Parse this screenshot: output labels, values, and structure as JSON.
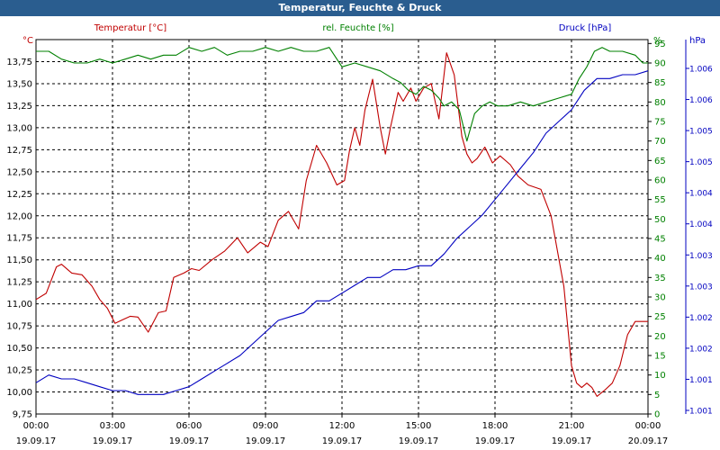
{
  "window": {
    "title": "Temperatur, Feuchte & Druck"
  },
  "chart_data": {
    "type": "line",
    "title": "Temperatur, Feuchte & Druck",
    "grid": true,
    "x_ticks": [
      {
        "time": "00:00",
        "date": "19.09.17"
      },
      {
        "time": "03:00",
        "date": "19.09.17"
      },
      {
        "time": "06:00",
        "date": "19.09.17"
      },
      {
        "time": "09:00",
        "date": "19.09.17"
      },
      {
        "time": "12:00",
        "date": "19.09.17"
      },
      {
        "time": "15:00",
        "date": "19.09.17"
      },
      {
        "time": "18:00",
        "date": "19.09.17"
      },
      {
        "time": "21:00",
        "date": "19.09.17"
      },
      {
        "time": "00:00",
        "date": "20.09.17"
      }
    ],
    "x_range_hours": [
      0,
      24
    ],
    "axes": {
      "temperature": {
        "label": "Temperatur [°C]",
        "unit": "°C",
        "color": "#c00000",
        "ylim": [
          9.75,
          14.0
        ],
        "ticks": [
          "9,75",
          "10,00",
          "10,25",
          "10,50",
          "10,75",
          "11,00",
          "11,25",
          "11,50",
          "11,75",
          "12,00",
          "12,25",
          "12,50",
          "12,75",
          "13,00",
          "13,25",
          "13,50",
          "13,75"
        ]
      },
      "humidity": {
        "label": "rel. Feuchte [%]",
        "unit": "%",
        "color": "#008000",
        "ylim": [
          0,
          96
        ],
        "ticks": [
          "0",
          "5",
          "10",
          "15",
          "20",
          "25",
          "30",
          "35",
          "40",
          "45",
          "50",
          "55",
          "60",
          "65",
          "70",
          "75",
          "80",
          "85",
          "90",
          "95"
        ]
      },
      "pressure": {
        "label": "Druck [hPa]",
        "unit": "hPa",
        "color": "#0000c0",
        "ticks": [
          "1.001",
          "1.001",
          "1.002",
          "1.002",
          "1.003",
          "1.003",
          "1.004",
          "1.004",
          "1.005",
          "1.005",
          "1.006",
          "1.006"
        ]
      }
    },
    "series": [
      {
        "name": "Temperatur [°C]",
        "axis": "temperature",
        "color": "#c00000",
        "x": [
          0,
          0.4,
          0.8,
          1.0,
          1.4,
          1.8,
          2.2,
          2.5,
          2.8,
          3.1,
          3.4,
          3.7,
          4.0,
          4.4,
          4.8,
          5.1,
          5.4,
          5.8,
          6.1,
          6.4,
          6.9,
          7.4,
          7.9,
          8.3,
          8.8,
          9.1,
          9.5,
          9.9,
          10.3,
          10.6,
          11.0,
          11.4,
          11.8,
          12.1,
          12.3,
          12.5,
          12.7,
          12.9,
          13.2,
          13.5,
          13.7,
          13.9,
          14.2,
          14.4,
          14.7,
          14.9,
          15.2,
          15.5,
          15.8,
          16.1,
          16.4,
          16.7,
          16.9,
          17.1,
          17.3,
          17.6,
          17.9,
          18.2,
          18.6,
          18.9,
          19.3,
          19.8,
          20.2,
          20.7,
          21.0,
          21.2,
          21.4,
          21.6,
          21.8,
          22.0,
          22.3,
          22.6,
          22.9,
          23.2,
          23.5,
          23.8,
          24.0
        ],
        "values": [
          11.05,
          11.12,
          11.42,
          11.45,
          11.35,
          11.33,
          11.2,
          11.05,
          10.95,
          10.78,
          10.82,
          10.86,
          10.85,
          10.68,
          10.9,
          10.92,
          11.3,
          11.35,
          11.4,
          11.38,
          11.5,
          11.6,
          11.75,
          11.58,
          11.7,
          11.65,
          11.95,
          12.05,
          11.85,
          12.4,
          12.8,
          12.6,
          12.35,
          12.4,
          12.75,
          13.0,
          12.8,
          13.2,
          13.55,
          13.0,
          12.7,
          13.0,
          13.4,
          13.3,
          13.45,
          13.3,
          13.45,
          13.5,
          13.1,
          13.85,
          13.6,
          12.9,
          12.7,
          12.6,
          12.65,
          12.78,
          12.6,
          12.68,
          12.58,
          12.45,
          12.35,
          12.3,
          12.0,
          11.2,
          10.3,
          10.1,
          10.05,
          10.1,
          10.05,
          9.95,
          10.02,
          10.1,
          10.3,
          10.65,
          10.8,
          10.8,
          10.8
        ]
      },
      {
        "name": "rel. Feuchte [%]",
        "axis": "humidity",
        "color": "#008000",
        "x": [
          0,
          0.5,
          1.0,
          1.5,
          2.0,
          2.5,
          3.0,
          3.5,
          4.0,
          4.5,
          5.0,
          5.5,
          6.0,
          6.5,
          7.0,
          7.5,
          8.0,
          8.5,
          9.0,
          9.5,
          10.0,
          10.5,
          11.0,
          11.5,
          12.0,
          12.5,
          13.0,
          13.5,
          14.0,
          14.3,
          14.6,
          14.9,
          15.2,
          15.5,
          15.8,
          16.0,
          16.3,
          16.6,
          16.9,
          17.2,
          17.5,
          17.8,
          18.1,
          18.5,
          19.0,
          19.5,
          20.0,
          20.5,
          21.0,
          21.3,
          21.6,
          21.9,
          22.2,
          22.5,
          23.0,
          23.5,
          23.8,
          24.0
        ],
        "values": [
          93,
          93,
          91,
          90,
          90,
          91,
          90,
          91,
          92,
          91,
          92,
          92,
          94,
          93,
          94,
          92,
          93,
          93,
          94,
          93,
          94,
          93,
          93,
          94,
          89,
          90,
          89,
          88,
          86,
          85,
          83,
          82,
          84,
          83,
          81,
          79,
          80,
          78,
          70,
          77,
          79,
          80,
          79,
          79,
          80,
          79,
          80,
          81,
          82,
          86,
          89,
          93,
          94,
          93,
          93,
          92,
          90,
          90
        ]
      },
      {
        "name": "Druck [hPa]",
        "axis": "pressure",
        "color": "#0000c0",
        "x": [
          0,
          0.5,
          1.0,
          1.5,
          2.0,
          2.5,
          3.0,
          3.5,
          4.0,
          4.5,
          5.0,
          5.5,
          6.0,
          6.5,
          7.0,
          7.5,
          8.0,
          8.5,
          9.0,
          9.5,
          10.0,
          10.5,
          11.0,
          11.5,
          12.0,
          12.5,
          13.0,
          13.5,
          14.0,
          14.5,
          15.0,
          15.5,
          16.0,
          16.5,
          17.0,
          17.5,
          18.0,
          18.5,
          19.0,
          19.5,
          20.0,
          20.5,
          21.0,
          21.5,
          22.0,
          22.5,
          23.0,
          23.5,
          24.0
        ],
        "values": [
          8,
          10,
          9,
          9,
          8,
          7,
          6,
          6,
          5,
          5,
          5,
          6,
          7,
          9,
          11,
          13,
          15,
          18,
          21,
          24,
          25,
          26,
          29,
          29,
          31,
          33,
          35,
          35,
          37,
          37,
          38,
          38,
          41,
          45,
          48,
          51,
          55,
          59,
          63,
          67,
          72,
          75,
          78,
          83,
          86,
          86,
          87,
          87,
          88
        ]
      }
    ]
  }
}
